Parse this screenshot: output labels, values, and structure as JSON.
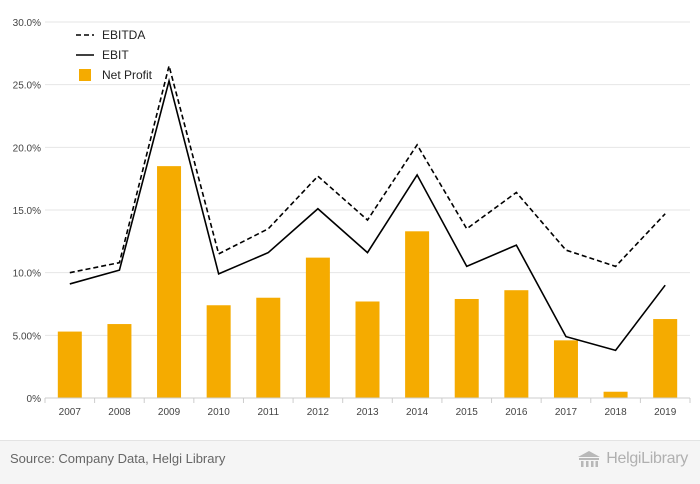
{
  "chart_data": {
    "type": "bar+line",
    "categories": [
      "2007",
      "2008",
      "2009",
      "2010",
      "2011",
      "2012",
      "2013",
      "2014",
      "2015",
      "2016",
      "2017",
      "2018",
      "2019"
    ],
    "series": [
      {
        "name": "EBITDA",
        "kind": "line",
        "style": "dashed",
        "color": "#000000",
        "values": [
          10.0,
          10.8,
          26.5,
          11.5,
          13.5,
          17.7,
          14.2,
          20.2,
          13.5,
          16.4,
          11.8,
          10.5,
          14.7
        ]
      },
      {
        "name": "EBIT",
        "kind": "line",
        "style": "solid",
        "color": "#000000",
        "values": [
          9.1,
          10.2,
          25.3,
          9.9,
          11.6,
          15.1,
          11.6,
          17.8,
          10.5,
          12.2,
          4.9,
          3.8,
          9.0
        ]
      },
      {
        "name": "Net Profit",
        "kind": "bar",
        "color": "#f5ab00",
        "values": [
          5.3,
          5.9,
          18.5,
          7.4,
          8.0,
          11.2,
          7.7,
          13.3,
          7.9,
          8.6,
          4.6,
          0.5,
          6.3
        ]
      }
    ],
    "ylim": [
      0,
      30
    ],
    "yticks": [
      0,
      5,
      10,
      15,
      20,
      25,
      30
    ],
    "ytick_labels": [
      "0%",
      "5.00%",
      "10.0%",
      "15.0%",
      "20.0%",
      "25.0%",
      "30.0%"
    ],
    "xlabel": "",
    "ylabel": "",
    "grid": true,
    "legend_position": "top-left"
  },
  "legend": {
    "items": [
      {
        "label": "EBITDA",
        "style": "dashed"
      },
      {
        "label": "EBIT",
        "style": "solid"
      },
      {
        "label": "Net Profit",
        "style": "bar"
      }
    ]
  },
  "footer": {
    "source": "Source: Company Data, Helgi Library",
    "logo_text": "HelgiLibrary",
    "logo_icon": "library-building-icon"
  },
  "colors": {
    "bar": "#f5ab00",
    "line": "#000000",
    "grid": "#e6e6e6"
  }
}
